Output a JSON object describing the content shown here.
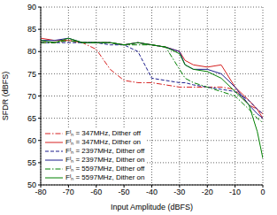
{
  "chart_data": {
    "type": "line",
    "x_label": "Input Amplitude (dBFS)",
    "y_label": "SFDR (dBFS)",
    "x": [
      -80,
      -75,
      -70,
      -65,
      -60,
      -55,
      -50,
      -45,
      -40,
      -35,
      -30,
      -28,
      -25,
      -20,
      -15,
      -10,
      -5,
      -2,
      0
    ],
    "xlim": [
      -80,
      0
    ],
    "xticks": [
      -80,
      -70,
      -60,
      -50,
      -40,
      -30,
      -20,
      -10,
      0
    ],
    "ylim": [
      50,
      90
    ],
    "yticks": [
      50,
      55,
      60,
      65,
      70,
      75,
      80,
      85,
      90
    ],
    "grid": true,
    "legend": "lower left",
    "series": [
      {
        "name": "Fᴵₙ = 347MHz, Dither off",
        "color": "#d62020",
        "line_style": "dashdot",
        "values": [
          82,
          82,
          82.5,
          82,
          80.5,
          76,
          73.5,
          73,
          73,
          72.5,
          72,
          72,
          72,
          72,
          72,
          71.5,
          68,
          67,
          66
        ]
      },
      {
        "name": "Fᴵₙ = 347MHz, Dither on",
        "color": "#d62020",
        "line_style": "solid",
        "values": [
          83,
          82.5,
          82.5,
          82,
          82,
          82,
          81.5,
          82,
          81.5,
          81,
          80,
          78,
          77,
          76.5,
          77,
          72,
          69,
          67,
          65
        ]
      },
      {
        "name": "Fᴵₙ = 2397MHz, Dither off",
        "color": "#1c1c8c",
        "line_style": "dashed",
        "values": [
          82,
          82,
          82,
          82,
          82,
          81.5,
          81.5,
          80,
          74,
          73.5,
          73,
          73,
          72.5,
          72,
          71.5,
          71,
          69,
          67,
          66
        ]
      },
      {
        "name": "Fᴵₙ = 2397MHz, Dither on",
        "color": "#1c1c8c",
        "line_style": "solid",
        "values": [
          82.5,
          82.5,
          83,
          82,
          82,
          82,
          81.5,
          82,
          81.5,
          81,
          80,
          77,
          76,
          76,
          75,
          72,
          68,
          66,
          65
        ]
      },
      {
        "name": "Fᴵₙ = 5597MHz, Dither off",
        "color": "#008000",
        "line_style": "dashdot",
        "values": [
          82,
          82,
          82.5,
          82,
          82,
          82,
          81.5,
          81.5,
          81.5,
          81,
          76,
          74,
          73,
          72,
          71,
          70,
          67,
          65,
          64
        ]
      },
      {
        "name": "Fᴵₙ = 5597MHz, Dither on",
        "color": "#008000",
        "line_style": "solid",
        "values": [
          82.5,
          82,
          83,
          82,
          82,
          82,
          81.5,
          82,
          81.5,
          81,
          79.5,
          77,
          76,
          75.5,
          74,
          71,
          68,
          62,
          56
        ]
      }
    ]
  }
}
